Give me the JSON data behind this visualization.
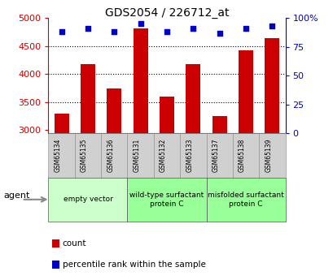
{
  "title": "GDS2054 / 226712_at",
  "categories": [
    "GSM65134",
    "GSM65135",
    "GSM65136",
    "GSM65131",
    "GSM65132",
    "GSM65133",
    "GSM65137",
    "GSM65138",
    "GSM65139"
  ],
  "counts": [
    3300,
    4180,
    3750,
    4820,
    3600,
    4180,
    3250,
    4430,
    4650
  ],
  "percentile_ranks": [
    88,
    91,
    88,
    95,
    88,
    91,
    87,
    91,
    93
  ],
  "ylim_left": [
    2950,
    5000
  ],
  "ylim_right": [
    0,
    100
  ],
  "yticks_left": [
    3000,
    3500,
    4000,
    4500,
    5000
  ],
  "yticks_right": [
    0,
    25,
    50,
    75,
    100
  ],
  "bar_color": "#cc0000",
  "dot_color": "#0000cc",
  "background_color": "#ffffff",
  "plot_bg_color": "#ffffff",
  "left_tick_color": "#cc0000",
  "right_tick_color": "#0000cc",
  "groups": [
    {
      "label": "empty vector",
      "start": 0,
      "end": 3,
      "color": "#ccffcc"
    },
    {
      "label": "wild-type surfactant\nprotein C",
      "start": 3,
      "end": 6,
      "color": "#99ff99"
    },
    {
      "label": "misfolded surfactant\nprotein C",
      "start": 6,
      "end": 9,
      "color": "#99ff99"
    }
  ],
  "legend_count_label": "count",
  "legend_percentile_label": "percentile rank within the sample",
  "agent_label": "agent",
  "xtick_bg_color": "#d0d0d0"
}
